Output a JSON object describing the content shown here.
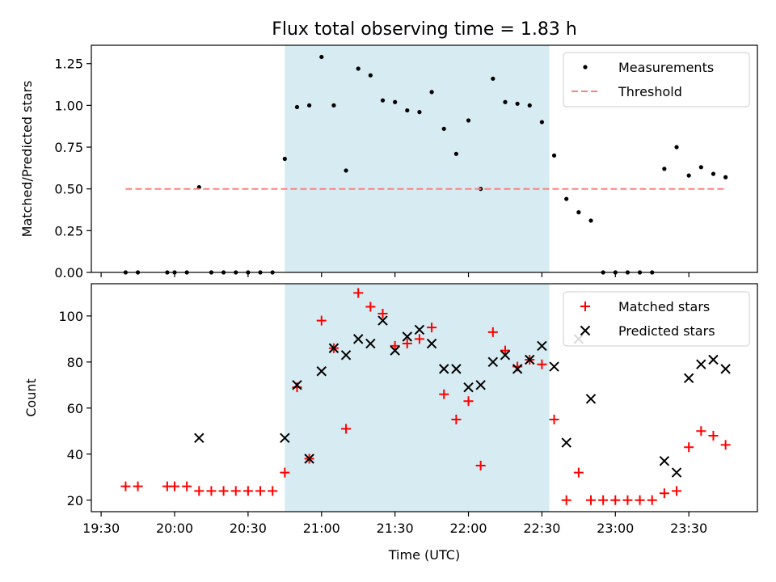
{
  "title": "Flux total observing time = 1.83 h",
  "chart_data": [
    {
      "type": "scatter",
      "ylabel": "Matched/Predicted stars",
      "xlabel": "",
      "xlim": [
        "19:26",
        "23:58"
      ],
      "ylim": [
        0,
        1.36
      ],
      "yticks": [
        "0.00",
        "0.25",
        "0.50",
        "0.75",
        "1.00",
        "1.25"
      ],
      "shaded_region": [
        "20:45",
        "22:33"
      ],
      "legend_position": "top-right",
      "series": [
        {
          "name": "Measurements",
          "marker": "dot",
          "color": "#000000",
          "points": [
            [
              "19:40",
              0
            ],
            [
              "19:45",
              0
            ],
            [
              "19:57",
              0
            ],
            [
              "20:00",
              0
            ],
            [
              "20:05",
              0
            ],
            [
              "20:10",
              0.51
            ],
            [
              "20:15",
              0
            ],
            [
              "20:20",
              0
            ],
            [
              "20:25",
              0
            ],
            [
              "20:30",
              0
            ],
            [
              "20:35",
              0
            ],
            [
              "20:40",
              0
            ],
            [
              "20:45",
              0.68
            ],
            [
              "20:50",
              0.99
            ],
            [
              "20:55",
              1.0
            ],
            [
              "21:00",
              1.29
            ],
            [
              "21:05",
              1.0
            ],
            [
              "21:10",
              0.61
            ],
            [
              "21:15",
              1.22
            ],
            [
              "21:20",
              1.18
            ],
            [
              "21:25",
              1.03
            ],
            [
              "21:30",
              1.02
            ],
            [
              "21:35",
              0.97
            ],
            [
              "21:40",
              0.96
            ],
            [
              "21:45",
              1.08
            ],
            [
              "21:50",
              0.86
            ],
            [
              "21:55",
              0.71
            ],
            [
              "22:00",
              0.91
            ],
            [
              "22:05",
              0.5
            ],
            [
              "22:10",
              1.16
            ],
            [
              "22:15",
              1.02
            ],
            [
              "22:20",
              1.01
            ],
            [
              "22:25",
              1.0
            ],
            [
              "22:30",
              0.9
            ],
            [
              "22:35",
              0.7
            ],
            [
              "22:40",
              0.44
            ],
            [
              "22:45",
              0.36
            ],
            [
              "22:50",
              0.31
            ],
            [
              "22:55",
              0
            ],
            [
              "23:00",
              0
            ],
            [
              "23:05",
              0
            ],
            [
              "23:10",
              0
            ],
            [
              "23:15",
              0
            ],
            [
              "23:20",
              0.62
            ],
            [
              "23:25",
              0.75
            ],
            [
              "23:30",
              0.58
            ],
            [
              "23:35",
              0.63
            ],
            [
              "23:40",
              0.59
            ],
            [
              "23:45",
              0.57
            ]
          ]
        },
        {
          "name": "Threshold",
          "marker": "dashed-line",
          "color": "#ff8080",
          "points": [
            [
              "19:40",
              0.5
            ],
            [
              "23:45",
              0.5
            ]
          ]
        }
      ]
    },
    {
      "type": "scatter",
      "ylabel": "Count",
      "xlabel": "Time (UTC)",
      "xlim": [
        "19:26",
        "23:58"
      ],
      "ylim": [
        15,
        114
      ],
      "yticks": [
        "20",
        "40",
        "60",
        "80",
        "100"
      ],
      "xticks": [
        "19:30",
        "20:00",
        "20:30",
        "21:00",
        "21:30",
        "22:00",
        "22:30",
        "23:00",
        "23:30"
      ],
      "shaded_region": [
        "20:45",
        "22:33"
      ],
      "legend_position": "top-right",
      "series": [
        {
          "name": "Matched stars",
          "marker": "plus",
          "color": "#ff0000",
          "points": [
            [
              "19:40",
              26
            ],
            [
              "19:45",
              26
            ],
            [
              "19:57",
              26
            ],
            [
              "20:00",
              26
            ],
            [
              "20:05",
              26
            ],
            [
              "20:10",
              24
            ],
            [
              "20:15",
              24
            ],
            [
              "20:20",
              24
            ],
            [
              "20:25",
              24
            ],
            [
              "20:30",
              24
            ],
            [
              "20:35",
              24
            ],
            [
              "20:40",
              24
            ],
            [
              "20:45",
              32
            ],
            [
              "20:50",
              69
            ],
            [
              "20:55",
              38
            ],
            [
              "21:00",
              98
            ],
            [
              "21:05",
              86
            ],
            [
              "21:10",
              51
            ],
            [
              "21:15",
              110
            ],
            [
              "21:20",
              104
            ],
            [
              "21:25",
              101
            ],
            [
              "21:30",
              87
            ],
            [
              "21:35",
              88
            ],
            [
              "21:40",
              90
            ],
            [
              "21:45",
              95
            ],
            [
              "21:50",
              66
            ],
            [
              "21:55",
              55
            ],
            [
              "22:00",
              63
            ],
            [
              "22:05",
              35
            ],
            [
              "22:10",
              93
            ],
            [
              "22:15",
              85
            ],
            [
              "22:20",
              78
            ],
            [
              "22:25",
              81
            ],
            [
              "22:30",
              79
            ],
            [
              "22:35",
              55
            ],
            [
              "22:40",
              20
            ],
            [
              "22:45",
              32
            ],
            [
              "22:50",
              20
            ],
            [
              "22:55",
              20
            ],
            [
              "23:00",
              20
            ],
            [
              "23:05",
              20
            ],
            [
              "23:10",
              20
            ],
            [
              "23:15",
              20
            ],
            [
              "23:20",
              23
            ],
            [
              "23:25",
              24
            ],
            [
              "23:30",
              43
            ],
            [
              "23:35",
              50
            ],
            [
              "23:40",
              48
            ],
            [
              "23:45",
              44
            ]
          ]
        },
        {
          "name": "Predicted stars",
          "marker": "x",
          "color": "#000000",
          "points": [
            [
              "20:10",
              47
            ],
            [
              "20:45",
              47
            ],
            [
              "20:50",
              70
            ],
            [
              "20:55",
              38
            ],
            [
              "21:00",
              76
            ],
            [
              "21:05",
              86
            ],
            [
              "21:10",
              83
            ],
            [
              "21:15",
              90
            ],
            [
              "21:20",
              88
            ],
            [
              "21:25",
              98
            ],
            [
              "21:30",
              85
            ],
            [
              "21:35",
              91
            ],
            [
              "21:40",
              94
            ],
            [
              "21:45",
              88
            ],
            [
              "21:50",
              77
            ],
            [
              "21:55",
              77
            ],
            [
              "22:00",
              69
            ],
            [
              "22:05",
              70
            ],
            [
              "22:10",
              80
            ],
            [
              "22:15",
              83
            ],
            [
              "22:20",
              77
            ],
            [
              "22:25",
              81
            ],
            [
              "22:30",
              87
            ],
            [
              "22:35",
              78
            ],
            [
              "22:40",
              45
            ],
            [
              "22:45",
              90
            ],
            [
              "22:50",
              64
            ],
            [
              "23:20",
              37
            ],
            [
              "23:25",
              32
            ],
            [
              "23:30",
              73
            ],
            [
              "23:35",
              79
            ],
            [
              "23:40",
              81
            ],
            [
              "23:45",
              77
            ]
          ]
        }
      ]
    }
  ]
}
